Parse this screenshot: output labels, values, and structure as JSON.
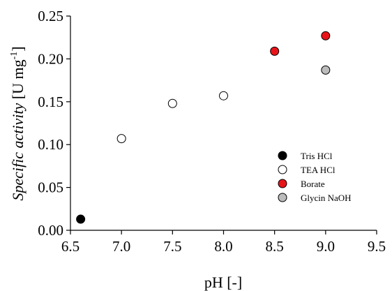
{
  "chart_data": {
    "type": "scatter",
    "title": "",
    "xlabel": "pH [-]",
    "ylabel": {
      "italic": "Specific activity",
      "unit_prefix": "[U mg",
      "unit_sup": "-1",
      "unit_suffix": "]"
    },
    "xlim": [
      6.5,
      9.5
    ],
    "ylim": [
      0.0,
      0.25
    ],
    "xticks": [
      "6.5",
      "7.0",
      "7.5",
      "8.0",
      "8.5",
      "9.0",
      "9.5"
    ],
    "yticks": [
      "0.00",
      "0.05",
      "0.10",
      "0.15",
      "0.20",
      "0.25"
    ],
    "grid": false,
    "legend_position": "lower-right",
    "series": [
      {
        "name": "Tris HCl",
        "fill": "#000000",
        "points": [
          {
            "x": 6.6,
            "y": 0.013
          }
        ]
      },
      {
        "name": "TEA HCl",
        "fill": "#ffffff",
        "points": [
          {
            "x": 7.0,
            "y": 0.107
          },
          {
            "x": 7.5,
            "y": 0.148
          },
          {
            "x": 8.0,
            "y": 0.157
          }
        ]
      },
      {
        "name": "Borate",
        "fill": "#e8141a",
        "points": [
          {
            "x": 8.5,
            "y": 0.209
          },
          {
            "x": 9.0,
            "y": 0.227
          }
        ]
      },
      {
        "name": "Glycin NaOH",
        "fill": "#bcbcbc",
        "points": [
          {
            "x": 9.0,
            "y": 0.187
          }
        ]
      }
    ]
  }
}
